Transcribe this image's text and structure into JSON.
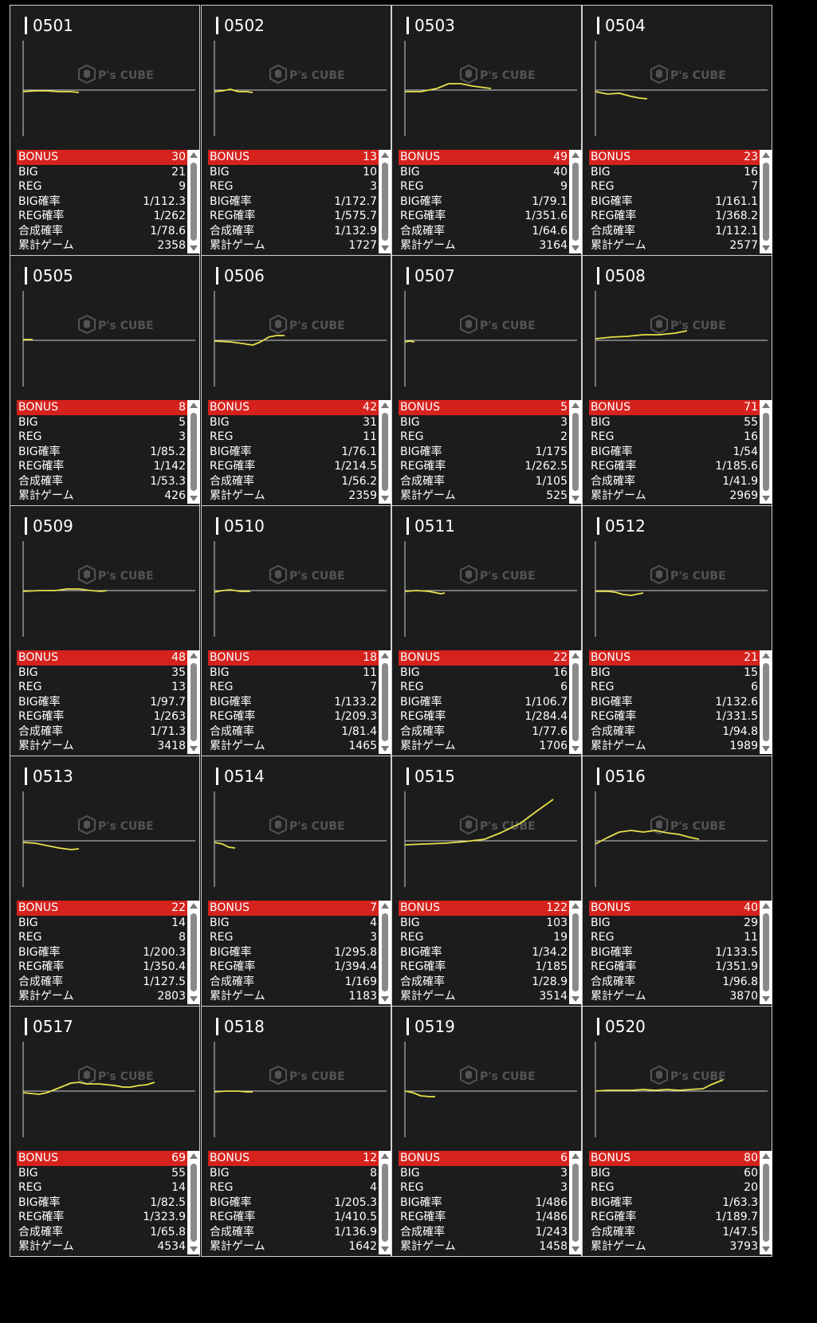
{
  "watermark": {
    "brand": "P's CUBE"
  },
  "labels": {
    "bonus": "BONUS",
    "big": "BIG",
    "reg": "REG",
    "big_prob": "BIG確率",
    "reg_prob": "REG確率",
    "combined_prob": "合成確率",
    "total_games": "累計ゲーム"
  },
  "colors": {
    "line": "#e8e04a",
    "bonus_bar": "#d6221d",
    "card_bg": "#1c1c1d"
  },
  "machines": [
    {
      "id": "0501",
      "bonus": "30",
      "big": "21",
      "reg": "9",
      "big_prob": "1/112.3",
      "reg_prob": "1/262",
      "combined_prob": "1/78.6",
      "total_games": "2358"
    },
    {
      "id": "0502",
      "bonus": "13",
      "big": "10",
      "reg": "3",
      "big_prob": "1/172.7",
      "reg_prob": "1/575.7",
      "combined_prob": "1/132.9",
      "total_games": "1727"
    },
    {
      "id": "0503",
      "bonus": "49",
      "big": "40",
      "reg": "9",
      "big_prob": "1/79.1",
      "reg_prob": "1/351.6",
      "combined_prob": "1/64.6",
      "total_games": "3164"
    },
    {
      "id": "0504",
      "bonus": "23",
      "big": "16",
      "reg": "7",
      "big_prob": "1/161.1",
      "reg_prob": "1/368.2",
      "combined_prob": "1/112.1",
      "total_games": "2577"
    },
    {
      "id": "0505",
      "bonus": "8",
      "big": "5",
      "reg": "3",
      "big_prob": "1/85.2",
      "reg_prob": "1/142",
      "combined_prob": "1/53.3",
      "total_games": "426"
    },
    {
      "id": "0506",
      "bonus": "42",
      "big": "31",
      "reg": "11",
      "big_prob": "1/76.1",
      "reg_prob": "1/214.5",
      "combined_prob": "1/56.2",
      "total_games": "2359"
    },
    {
      "id": "0507",
      "bonus": "5",
      "big": "3",
      "reg": "2",
      "big_prob": "1/175",
      "reg_prob": "1/262.5",
      "combined_prob": "1/105",
      "total_games": "525"
    },
    {
      "id": "0508",
      "bonus": "71",
      "big": "55",
      "reg": "16",
      "big_prob": "1/54",
      "reg_prob": "1/185.6",
      "combined_prob": "1/41.9",
      "total_games": "2969"
    },
    {
      "id": "0509",
      "bonus": "48",
      "big": "35",
      "reg": "13",
      "big_prob": "1/97.7",
      "reg_prob": "1/263",
      "combined_prob": "1/71.3",
      "total_games": "3418"
    },
    {
      "id": "0510",
      "bonus": "18",
      "big": "11",
      "reg": "7",
      "big_prob": "1/133.2",
      "reg_prob": "1/209.3",
      "combined_prob": "1/81.4",
      "total_games": "1465"
    },
    {
      "id": "0511",
      "bonus": "22",
      "big": "16",
      "reg": "6",
      "big_prob": "1/106.7",
      "reg_prob": "1/284.4",
      "combined_prob": "1/77.6",
      "total_games": "1706"
    },
    {
      "id": "0512",
      "bonus": "21",
      "big": "15",
      "reg": "6",
      "big_prob": "1/132.6",
      "reg_prob": "1/331.5",
      "combined_prob": "1/94.8",
      "total_games": "1989"
    },
    {
      "id": "0513",
      "bonus": "22",
      "big": "14",
      "reg": "8",
      "big_prob": "1/200.3",
      "reg_prob": "1/350.4",
      "combined_prob": "1/127.5",
      "total_games": "2803"
    },
    {
      "id": "0514",
      "bonus": "7",
      "big": "4",
      "reg": "3",
      "big_prob": "1/295.8",
      "reg_prob": "1/394.4",
      "combined_prob": "1/169",
      "total_games": "1183"
    },
    {
      "id": "0515",
      "bonus": "122",
      "big": "103",
      "reg": "19",
      "big_prob": "1/34.2",
      "reg_prob": "1/185",
      "combined_prob": "1/28.9",
      "total_games": "3514"
    },
    {
      "id": "0516",
      "bonus": "40",
      "big": "29",
      "reg": "11",
      "big_prob": "1/133.5",
      "reg_prob": "1/351.9",
      "combined_prob": "1/96.8",
      "total_games": "3870"
    },
    {
      "id": "0517",
      "bonus": "69",
      "big": "55",
      "reg": "14",
      "big_prob": "1/82.5",
      "reg_prob": "1/323.9",
      "combined_prob": "1/65.8",
      "total_games": "4534"
    },
    {
      "id": "0518",
      "bonus": "12",
      "big": "8",
      "reg": "4",
      "big_prob": "1/205.3",
      "reg_prob": "1/410.5",
      "combined_prob": "1/136.9",
      "total_games": "1642"
    },
    {
      "id": "0519",
      "bonus": "6",
      "big": "3",
      "reg": "3",
      "big_prob": "1/486",
      "reg_prob": "1/486",
      "combined_prob": "1/243",
      "total_games": "1458"
    },
    {
      "id": "0520",
      "bonus": "80",
      "big": "60",
      "reg": "20",
      "big_prob": "1/63.3",
      "reg_prob": "1/189.7",
      "combined_prob": "1/47.5",
      "total_games": "3793"
    }
  ]
}
